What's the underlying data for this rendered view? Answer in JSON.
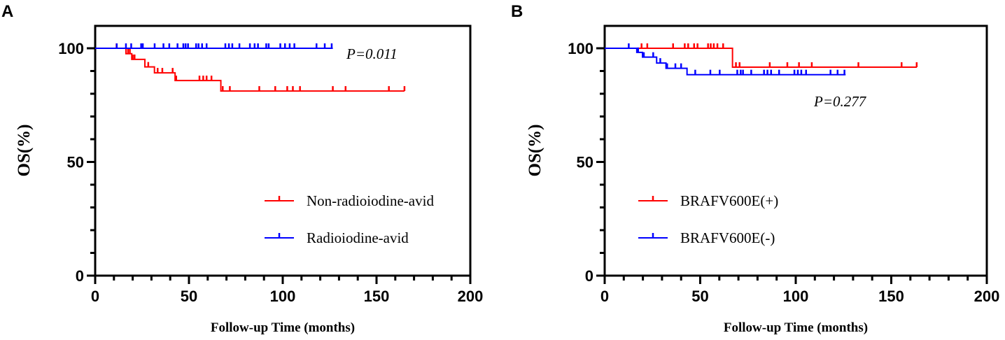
{
  "chart_data": [
    {
      "type": "line",
      "subtype": "kaplan-meier",
      "panel_label": "A",
      "xlabel": "Follow-up Time (months)",
      "ylabel": "OS(%)",
      "xlim": [
        0,
        200
      ],
      "ylim": [
        0,
        100
      ],
      "xticks": [
        "0",
        "50",
        "100",
        "150",
        "200"
      ],
      "yticks": [
        "0",
        "50",
        "100"
      ],
      "annotation": "P=0.011",
      "legend_position": "center-right",
      "series": [
        {
          "name": "Non-radioiodine-avid",
          "color": "#ff0000",
          "steps": [
            [
              0,
              100
            ],
            [
              16.4,
              97.6
            ],
            [
              19.5,
              95.1
            ],
            [
              26.5,
              91.8
            ],
            [
              31.6,
              89.2
            ],
            [
              42.6,
              85.8
            ],
            [
              67,
              81.2
            ]
          ],
          "end": 164.9,
          "censored": [
            [
              11.4,
              100
            ],
            [
              17.5,
              97.6
            ],
            [
              18.5,
              97.6
            ],
            [
              20,
              95.1
            ],
            [
              21,
              95.1
            ],
            [
              28.3,
              91.8
            ],
            [
              33.3,
              89.2
            ],
            [
              35.8,
              89.2
            ],
            [
              41.3,
              89.2
            ],
            [
              43.2,
              85.8
            ],
            [
              55.6,
              85.8
            ],
            [
              57.6,
              85.8
            ],
            [
              59.4,
              85.8
            ],
            [
              62,
              85.8
            ],
            [
              68,
              81.2
            ],
            [
              71.8,
              81.2
            ],
            [
              87.5,
              81.2
            ],
            [
              96,
              81.2
            ],
            [
              102.4,
              81.2
            ],
            [
              105.4,
              81.2
            ],
            [
              109.2,
              81.2
            ],
            [
              126.7,
              81.2
            ],
            [
              133.5,
              81.2
            ],
            [
              156.6,
              81.2
            ],
            [
              164.9,
              81.2
            ]
          ]
        },
        {
          "name": "Radioiodine-avid",
          "color": "#0000ff",
          "steps": [
            [
              0,
              100
            ]
          ],
          "end": 126.7,
          "censored": [
            [
              11.5,
              100
            ],
            [
              16.4,
              100
            ],
            [
              19.2,
              100
            ],
            [
              24.5,
              100
            ],
            [
              25.4,
              100
            ],
            [
              31.7,
              100
            ],
            [
              36.4,
              100
            ],
            [
              39.5,
              100
            ],
            [
              43.9,
              100
            ],
            [
              47,
              100
            ],
            [
              48.2,
              100
            ],
            [
              49.5,
              100
            ],
            [
              53.8,
              100
            ],
            [
              55.1,
              100
            ],
            [
              57,
              100
            ],
            [
              59.4,
              100
            ],
            [
              69.4,
              100
            ],
            [
              71.3,
              100
            ],
            [
              73.1,
              100
            ],
            [
              76.9,
              100
            ],
            [
              82.5,
              100
            ],
            [
              85,
              100
            ],
            [
              86.8,
              100
            ],
            [
              91.2,
              100
            ],
            [
              92.5,
              100
            ],
            [
              98.7,
              100
            ],
            [
              101.2,
              100
            ],
            [
              103.7,
              100
            ],
            [
              106.2,
              100
            ],
            [
              118,
              100
            ],
            [
              122.4,
              100
            ],
            [
              126.1,
              100
            ]
          ]
        }
      ]
    },
    {
      "type": "line",
      "subtype": "kaplan-meier",
      "panel_label": "B",
      "xlabel": "Follow-up Time (months)",
      "ylabel": "OS(%)",
      "xlim": [
        0,
        200
      ],
      "ylim": [
        0,
        100
      ],
      "xticks": [
        "0",
        "50",
        "100",
        "150",
        "200"
      ],
      "yticks": [
        "0",
        "50",
        "100"
      ],
      "annotation": "P=0.277",
      "legend_position": "center-left",
      "series": [
        {
          "name": "BRAFV600E(+)",
          "color": "#ff0000",
          "steps": [
            [
              0,
              100
            ],
            [
              66.9,
              91.7
            ]
          ],
          "end": 163.4,
          "censored": [
            [
              19.3,
              100
            ],
            [
              22.3,
              100
            ],
            [
              35.8,
              100
            ],
            [
              41.9,
              100
            ],
            [
              43.7,
              100
            ],
            [
              46.8,
              100
            ],
            [
              48.6,
              100
            ],
            [
              54.1,
              100
            ],
            [
              55.5,
              100
            ],
            [
              57.1,
              100
            ],
            [
              59,
              100
            ],
            [
              62,
              100
            ],
            [
              68.7,
              91.7
            ],
            [
              70.6,
              91.7
            ],
            [
              86.4,
              91.7
            ],
            [
              95.6,
              91.7
            ],
            [
              101.7,
              91.7
            ],
            [
              108.4,
              91.7
            ],
            [
              132.8,
              91.7
            ],
            [
              155.4,
              91.7
            ],
            [
              163.3,
              91.7
            ]
          ]
        },
        {
          "name": "BRAFV600E(-)",
          "color": "#0000ff",
          "steps": [
            [
              0,
              100
            ],
            [
              16.8,
              98.2
            ],
            [
              19.8,
              96.1
            ],
            [
              27.2,
              93.5
            ],
            [
              32.1,
              91.2
            ],
            [
              43.1,
              88.4
            ]
          ],
          "end": 126.1,
          "censored": [
            [
              12.6,
              100
            ],
            [
              17.5,
              98.2
            ],
            [
              20.5,
              96.1
            ],
            [
              25.4,
              96.1
            ],
            [
              29.1,
              93.5
            ],
            [
              32.7,
              91.2
            ],
            [
              37,
              91.2
            ],
            [
              40,
              91.2
            ],
            [
              47.4,
              88.4
            ],
            [
              55.3,
              88.4
            ],
            [
              60.2,
              88.4
            ],
            [
              69.4,
              88.4
            ],
            [
              71.2,
              88.4
            ],
            [
              72.4,
              88.4
            ],
            [
              76.7,
              88.4
            ],
            [
              83.4,
              88.4
            ],
            [
              85.2,
              88.4
            ],
            [
              87.1,
              88.4
            ],
            [
              91.3,
              88.4
            ],
            [
              99.3,
              88.4
            ],
            [
              101.1,
              88.4
            ],
            [
              102.9,
              88.4
            ],
            [
              105.4,
              88.4
            ],
            [
              118.2,
              88.4
            ],
            [
              121.9,
              88.4
            ],
            [
              125.5,
              88.4
            ]
          ]
        }
      ]
    }
  ]
}
